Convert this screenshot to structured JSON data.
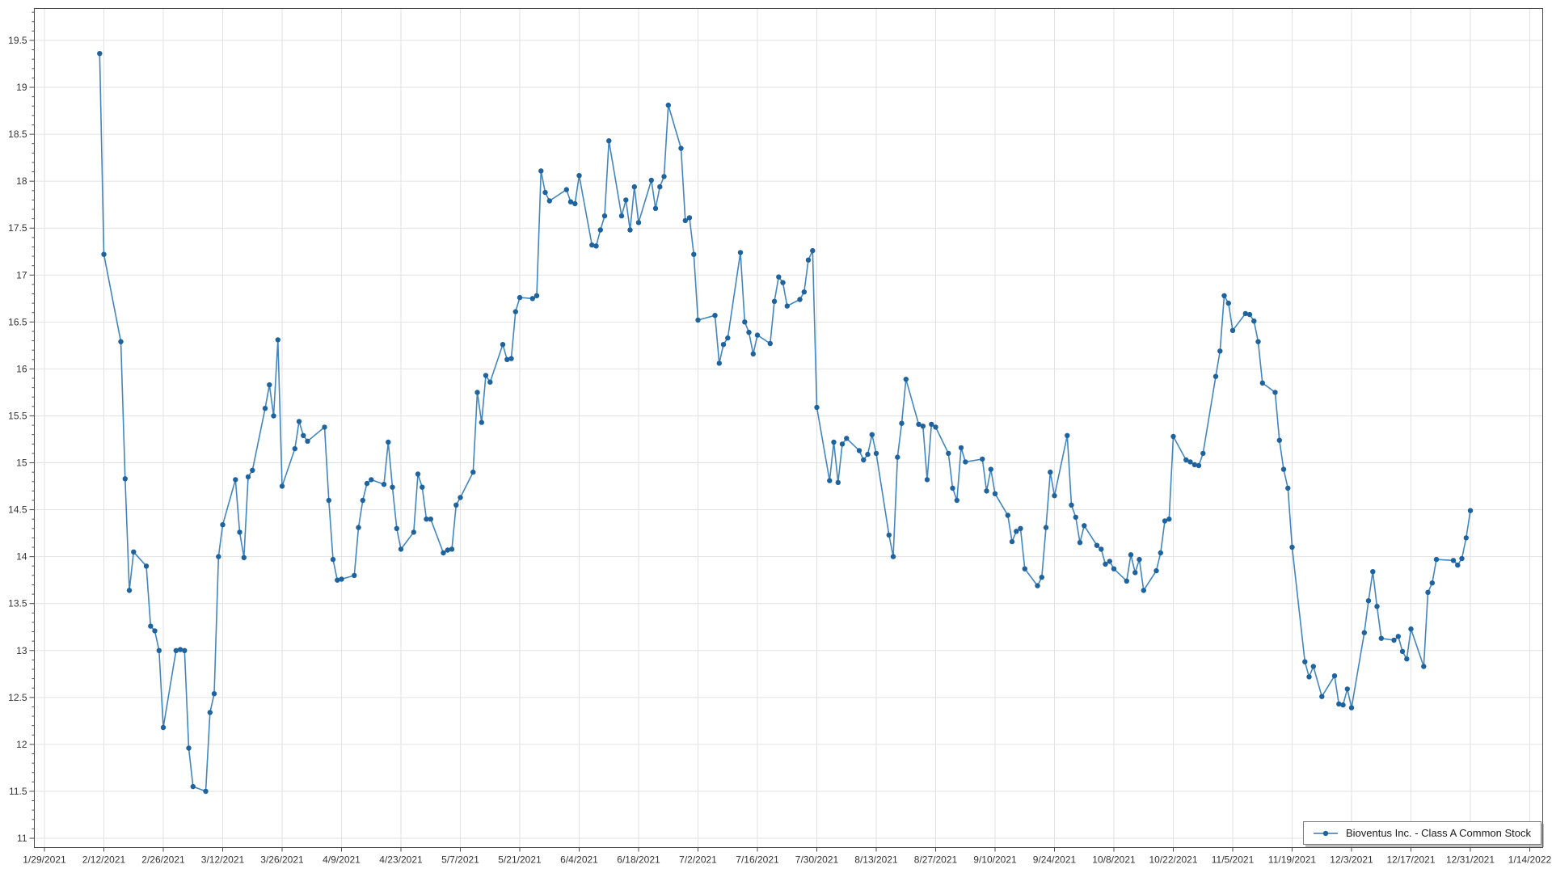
{
  "window": {
    "background": "#ffffff"
  },
  "chart_data": {
    "type": "line",
    "title": "",
    "legend": {
      "position": "bottom-right",
      "label": "Bioventus Inc. - Class A Common Stock"
    },
    "colors": {
      "line": "#2e79b8",
      "marker": "#1f639e",
      "grid": "#e2e2e2",
      "axis": "#4a4a4a",
      "tick_text": "#333333"
    },
    "x_axis": {
      "start_date": "1/29/2021",
      "interval_days": 14,
      "tick_labels": [
        "1/29/2021",
        "2/12/2021",
        "2/26/2021",
        "3/12/2021",
        "3/26/2021",
        "4/9/2021",
        "4/23/2021",
        "5/7/2021",
        "5/21/2021",
        "6/4/2021",
        "6/18/2021",
        "7/2/2021",
        "7/16/2021",
        "7/30/2021",
        "8/13/2021",
        "8/27/2021",
        "9/10/2021",
        "9/24/2021",
        "10/8/2021",
        "10/22/2021",
        "11/5/2021",
        "11/19/2021",
        "12/3/2021",
        "12/17/2021",
        "12/31/2021",
        "1/14/2022"
      ]
    },
    "y_axis": {
      "min": 10.9,
      "max": 19.85,
      "major_step": 0.5,
      "minor_step": 0.1,
      "tick_labels": [
        "11",
        "11.5",
        "12",
        "12.5",
        "13",
        "13.5",
        "14",
        "14.5",
        "15",
        "15.5",
        "16",
        "16.5",
        "17",
        "17.5",
        "18",
        "18.5",
        "19",
        "19.5"
      ]
    },
    "grid": true,
    "series": [
      {
        "name": "Bioventus Inc. - Class A Common Stock",
        "points": [
          [
            "2/11/2021",
            19.36
          ],
          [
            "2/12/2021",
            17.22
          ],
          [
            "2/16/2021",
            16.29
          ],
          [
            "2/17/2021",
            14.83
          ],
          [
            "2/18/2021",
            13.64
          ],
          [
            "2/19/2021",
            14.05
          ],
          [
            "2/22/2021",
            13.9
          ],
          [
            "2/23/2021",
            13.26
          ],
          [
            "2/24/2021",
            13.21
          ],
          [
            "2/25/2021",
            13.0
          ],
          [
            "2/26/2021",
            12.18
          ],
          [
            "3/1/2021",
            13.0
          ],
          [
            "3/2/2021",
            13.01
          ],
          [
            "3/3/2021",
            13.0
          ],
          [
            "3/4/2021",
            11.96
          ],
          [
            "3/5/2021",
            11.55
          ],
          [
            "3/8/2021",
            11.5
          ],
          [
            "3/9/2021",
            12.34
          ],
          [
            "3/10/2021",
            12.54
          ],
          [
            "3/11/2021",
            14.0
          ],
          [
            "3/12/2021",
            14.34
          ],
          [
            "3/15/2021",
            14.82
          ],
          [
            "3/16/2021",
            14.26
          ],
          [
            "3/17/2021",
            13.99
          ],
          [
            "3/18/2021",
            14.85
          ],
          [
            "3/19/2021",
            14.92
          ],
          [
            "3/22/2021",
            15.58
          ],
          [
            "3/23/2021",
            15.83
          ],
          [
            "3/24/2021",
            15.5
          ],
          [
            "3/25/2021",
            16.31
          ],
          [
            "3/26/2021",
            14.75
          ],
          [
            "3/29/2021",
            15.15
          ],
          [
            "3/30/2021",
            15.44
          ],
          [
            "3/31/2021",
            15.29
          ],
          [
            "4/1/2021",
            15.23
          ],
          [
            "4/5/2021",
            15.38
          ],
          [
            "4/6/2021",
            14.6
          ],
          [
            "4/7/2021",
            13.97
          ],
          [
            "4/8/2021",
            13.75
          ],
          [
            "4/9/2021",
            13.76
          ],
          [
            "4/12/2021",
            13.8
          ],
          [
            "4/13/2021",
            14.31
          ],
          [
            "4/14/2021",
            14.6
          ],
          [
            "4/15/2021",
            14.78
          ],
          [
            "4/16/2021",
            14.82
          ],
          [
            "4/19/2021",
            14.77
          ],
          [
            "4/20/2021",
            15.22
          ],
          [
            "4/21/2021",
            14.74
          ],
          [
            "4/22/2021",
            14.3
          ],
          [
            "4/23/2021",
            14.08
          ],
          [
            "4/26/2021",
            14.26
          ],
          [
            "4/27/2021",
            14.88
          ],
          [
            "4/28/2021",
            14.74
          ],
          [
            "4/29/2021",
            14.4
          ],
          [
            "4/30/2021",
            14.4
          ],
          [
            "5/3/2021",
            14.04
          ],
          [
            "5/4/2021",
            14.07
          ],
          [
            "5/5/2021",
            14.08
          ],
          [
            "5/6/2021",
            14.55
          ],
          [
            "5/7/2021",
            14.63
          ],
          [
            "5/10/2021",
            14.9
          ],
          [
            "5/11/2021",
            15.75
          ],
          [
            "5/12/2021",
            15.43
          ],
          [
            "5/13/2021",
            15.93
          ],
          [
            "5/14/2021",
            15.86
          ],
          [
            "5/17/2021",
            16.26
          ],
          [
            "5/18/2021",
            16.1
          ],
          [
            "5/19/2021",
            16.11
          ],
          [
            "5/20/2021",
            16.61
          ],
          [
            "5/21/2021",
            16.76
          ],
          [
            "5/24/2021",
            16.75
          ],
          [
            "5/25/2021",
            16.78
          ],
          [
            "5/26/2021",
            18.11
          ],
          [
            "5/27/2021",
            17.88
          ],
          [
            "5/28/2021",
            17.79
          ],
          [
            "6/1/2021",
            17.91
          ],
          [
            "6/2/2021",
            17.78
          ],
          [
            "6/3/2021",
            17.76
          ],
          [
            "6/4/2021",
            18.06
          ],
          [
            "6/7/2021",
            17.32
          ],
          [
            "6/8/2021",
            17.31
          ],
          [
            "6/9/2021",
            17.48
          ],
          [
            "6/10/2021",
            17.63
          ],
          [
            "6/11/2021",
            18.43
          ],
          [
            "6/14/2021",
            17.63
          ],
          [
            "6/15/2021",
            17.8
          ],
          [
            "6/16/2021",
            17.48
          ],
          [
            "6/17/2021",
            17.94
          ],
          [
            "6/18/2021",
            17.56
          ],
          [
            "6/21/2021",
            18.01
          ],
          [
            "6/22/2021",
            17.71
          ],
          [
            "6/23/2021",
            17.94
          ],
          [
            "6/24/2021",
            18.05
          ],
          [
            "6/25/2021",
            18.81
          ],
          [
            "6/28/2021",
            18.35
          ],
          [
            "6/29/2021",
            17.58
          ],
          [
            "6/30/2021",
            17.61
          ],
          [
            "7/1/2021",
            17.22
          ],
          [
            "7/2/2021",
            16.52
          ],
          [
            "7/6/2021",
            16.57
          ],
          [
            "7/7/2021",
            16.06
          ],
          [
            "7/8/2021",
            16.26
          ],
          [
            "7/9/2021",
            16.33
          ],
          [
            "7/12/2021",
            17.24
          ],
          [
            "7/13/2021",
            16.5
          ],
          [
            "7/14/2021",
            16.39
          ],
          [
            "7/15/2021",
            16.16
          ],
          [
            "7/16/2021",
            16.36
          ],
          [
            "7/19/2021",
            16.27
          ],
          [
            "7/20/2021",
            16.72
          ],
          [
            "7/21/2021",
            16.98
          ],
          [
            "7/22/2021",
            16.92
          ],
          [
            "7/23/2021",
            16.67
          ],
          [
            "7/26/2021",
            16.74
          ],
          [
            "7/27/2021",
            16.82
          ],
          [
            "7/28/2021",
            17.16
          ],
          [
            "7/29/2021",
            17.26
          ],
          [
            "7/30/2021",
            15.59
          ],
          [
            "8/2/2021",
            14.81
          ],
          [
            "8/3/2021",
            15.22
          ],
          [
            "8/4/2021",
            14.79
          ],
          [
            "8/5/2021",
            15.2
          ],
          [
            "8/6/2021",
            15.26
          ],
          [
            "8/9/2021",
            15.13
          ],
          [
            "8/10/2021",
            15.03
          ],
          [
            "8/11/2021",
            15.09
          ],
          [
            "8/12/2021",
            15.3
          ],
          [
            "8/13/2021",
            15.1
          ],
          [
            "8/16/2021",
            14.23
          ],
          [
            "8/17/2021",
            14.0
          ],
          [
            "8/18/2021",
            15.06
          ],
          [
            "8/19/2021",
            15.42
          ],
          [
            "8/20/2021",
            15.89
          ],
          [
            "8/23/2021",
            15.41
          ],
          [
            "8/24/2021",
            15.39
          ],
          [
            "8/25/2021",
            14.82
          ],
          [
            "8/26/2021",
            15.41
          ],
          [
            "8/27/2021",
            15.38
          ],
          [
            "8/30/2021",
            15.1
          ],
          [
            "8/31/2021",
            14.73
          ],
          [
            "9/1/2021",
            14.6
          ],
          [
            "9/2/2021",
            15.16
          ],
          [
            "9/3/2021",
            15.01
          ],
          [
            "9/7/2021",
            15.04
          ],
          [
            "9/8/2021",
            14.7
          ],
          [
            "9/9/2021",
            14.93
          ],
          [
            "9/10/2021",
            14.67
          ],
          [
            "9/13/2021",
            14.44
          ],
          [
            "9/14/2021",
            14.16
          ],
          [
            "9/15/2021",
            14.27
          ],
          [
            "9/16/2021",
            14.3
          ],
          [
            "9/17/2021",
            13.87
          ],
          [
            "9/20/2021",
            13.69
          ],
          [
            "9/21/2021",
            13.78
          ],
          [
            "9/22/2021",
            14.31
          ],
          [
            "9/23/2021",
            14.9
          ],
          [
            "9/24/2021",
            14.65
          ],
          [
            "9/27/2021",
            15.29
          ],
          [
            "9/28/2021",
            14.55
          ],
          [
            "9/29/2021",
            14.42
          ],
          [
            "9/30/2021",
            14.15
          ],
          [
            "10/1/2021",
            14.33
          ],
          [
            "10/4/2021",
            14.12
          ],
          [
            "10/5/2021",
            14.08
          ],
          [
            "10/6/2021",
            13.92
          ],
          [
            "10/7/2021",
            13.95
          ],
          [
            "10/8/2021",
            13.87
          ],
          [
            "10/11/2021",
            13.74
          ],
          [
            "10/12/2021",
            14.02
          ],
          [
            "10/13/2021",
            13.83
          ],
          [
            "10/14/2021",
            13.97
          ],
          [
            "10/15/2021",
            13.64
          ],
          [
            "10/18/2021",
            13.85
          ],
          [
            "10/19/2021",
            14.04
          ],
          [
            "10/20/2021",
            14.38
          ],
          [
            "10/21/2021",
            14.4
          ],
          [
            "10/22/2021",
            15.28
          ],
          [
            "10/25/2021",
            15.03
          ],
          [
            "10/26/2021",
            15.01
          ],
          [
            "10/27/2021",
            14.98
          ],
          [
            "10/28/2021",
            14.97
          ],
          [
            "10/29/2021",
            15.1
          ],
          [
            "11/1/2021",
            15.92
          ],
          [
            "11/2/2021",
            16.19
          ],
          [
            "11/3/2021",
            16.78
          ],
          [
            "11/4/2021",
            16.7
          ],
          [
            "11/5/2021",
            16.41
          ],
          [
            "11/8/2021",
            16.59
          ],
          [
            "11/9/2021",
            16.58
          ],
          [
            "11/10/2021",
            16.51
          ],
          [
            "11/11/2021",
            16.29
          ],
          [
            "11/12/2021",
            15.85
          ],
          [
            "11/15/2021",
            15.75
          ],
          [
            "11/16/2021",
            15.24
          ],
          [
            "11/17/2021",
            14.93
          ],
          [
            "11/18/2021",
            14.73
          ],
          [
            "11/19/2021",
            14.1
          ],
          [
            "11/22/2021",
            12.88
          ],
          [
            "11/23/2021",
            12.72
          ],
          [
            "11/24/2021",
            12.83
          ],
          [
            "11/26/2021",
            12.51
          ],
          [
            "11/29/2021",
            12.73
          ],
          [
            "11/30/2021",
            12.43
          ],
          [
            "12/1/2021",
            12.42
          ],
          [
            "12/2/2021",
            12.59
          ],
          [
            "12/3/2021",
            12.39
          ],
          [
            "12/6/2021",
            13.19
          ],
          [
            "12/7/2021",
            13.53
          ],
          [
            "12/8/2021",
            13.84
          ],
          [
            "12/9/2021",
            13.47
          ],
          [
            "12/10/2021",
            13.13
          ],
          [
            "12/13/2021",
            13.11
          ],
          [
            "12/14/2021",
            13.15
          ],
          [
            "12/15/2021",
            12.99
          ],
          [
            "12/16/2021",
            12.91
          ],
          [
            "12/17/2021",
            13.23
          ],
          [
            "12/20/2021",
            12.83
          ],
          [
            "12/21/2021",
            13.62
          ],
          [
            "12/22/2021",
            13.72
          ],
          [
            "12/23/2021",
            13.97
          ],
          [
            "12/27/2021",
            13.96
          ],
          [
            "12/28/2021",
            13.91
          ],
          [
            "12/29/2021",
            13.98
          ],
          [
            "12/30/2021",
            14.2
          ],
          [
            "12/31/2021",
            14.49
          ]
        ]
      }
    ]
  }
}
